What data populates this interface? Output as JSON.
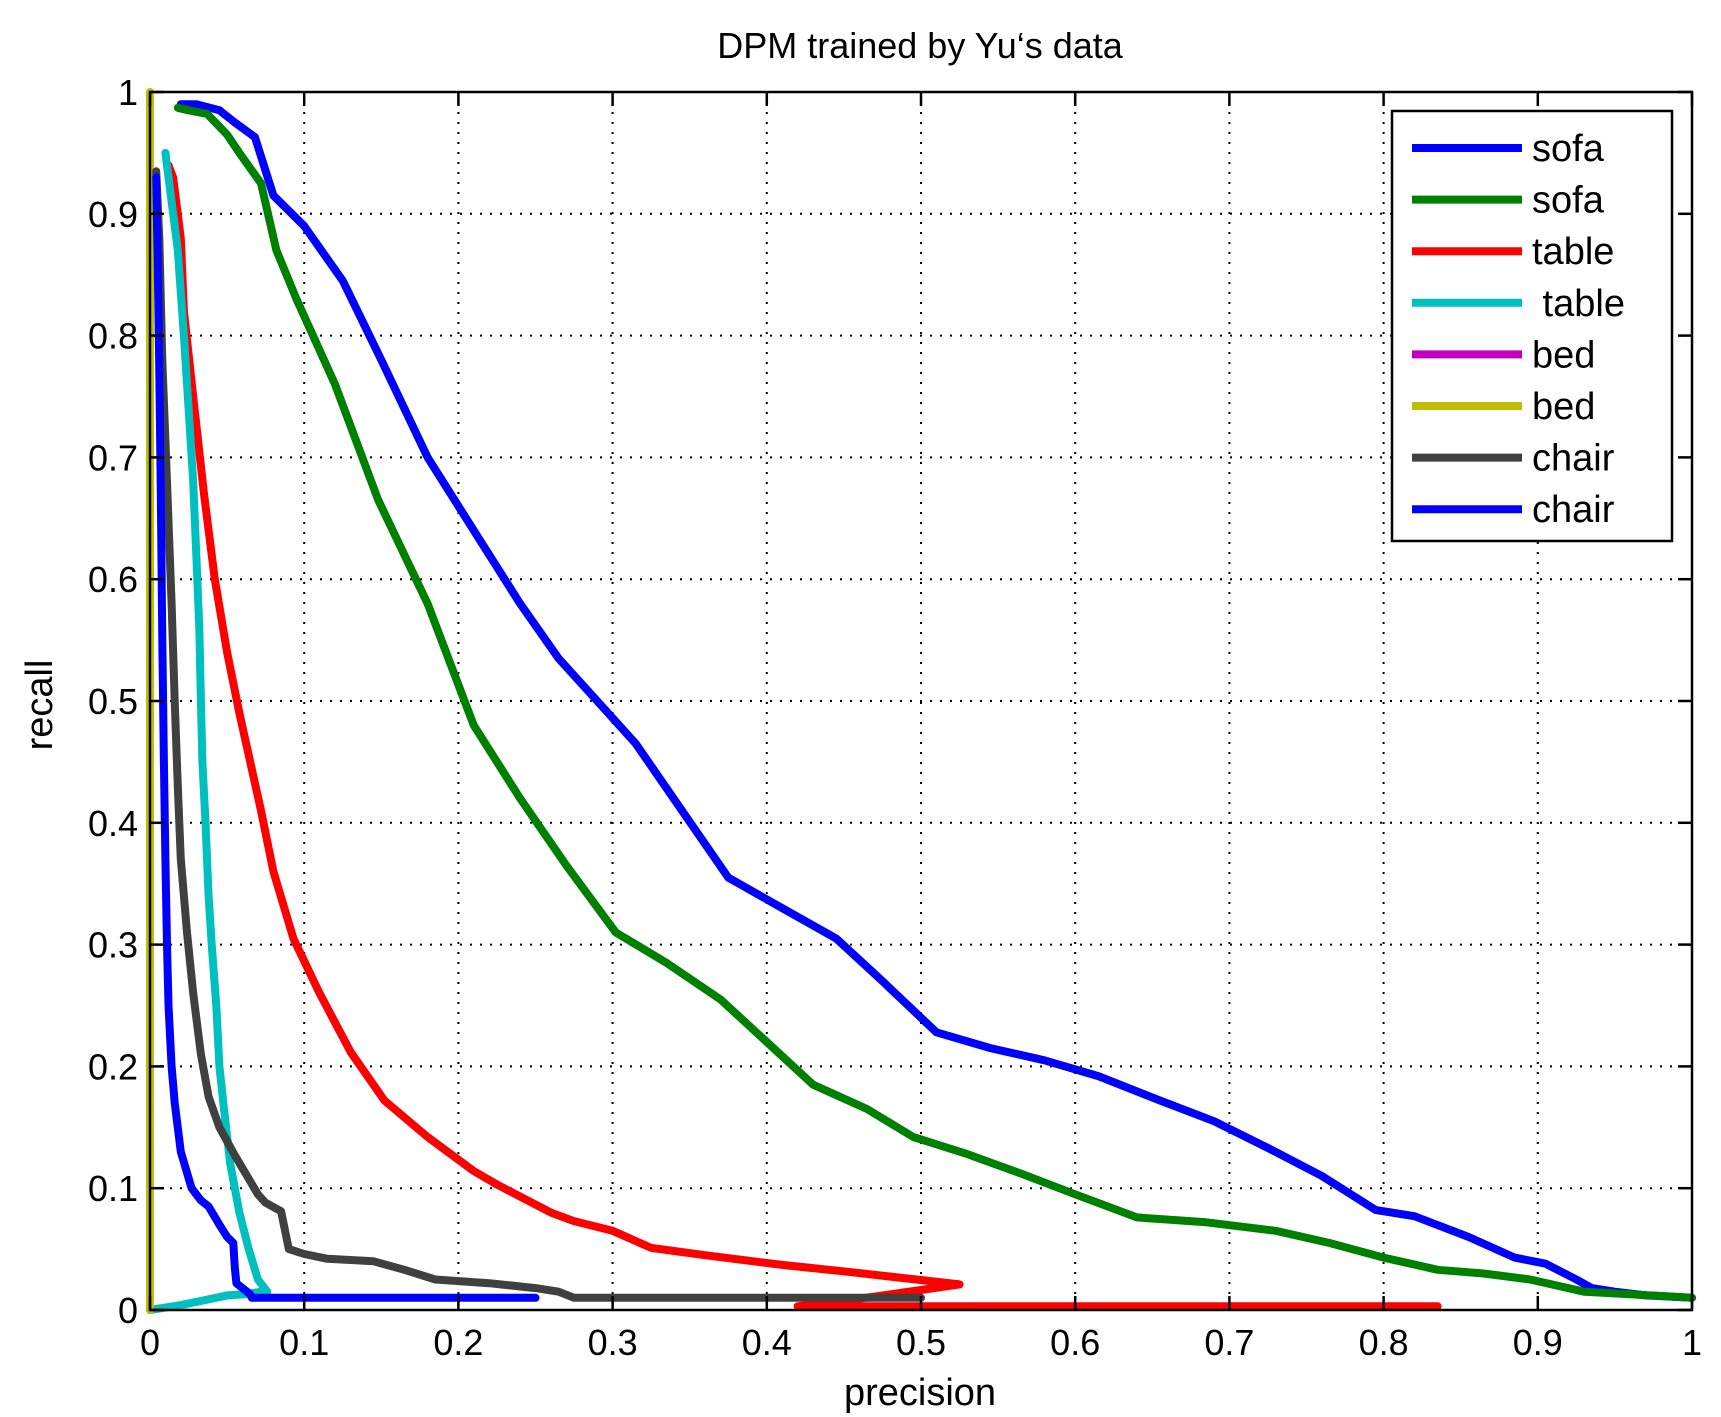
{
  "chart_data": {
    "type": "line",
    "title": "DPM trained by Yu‘s data",
    "xlabel": "precision",
    "ylabel": "recall",
    "xlim": [
      0,
      1
    ],
    "ylim": [
      0,
      1
    ],
    "xticks": [
      0,
      0.1,
      0.2,
      0.3,
      0.4,
      0.5,
      0.6,
      0.7,
      0.8,
      0.9,
      1
    ],
    "xtick_labels": [
      "0",
      "0.1",
      "0.2",
      "0.3",
      "0.4",
      "0.5",
      "0.6",
      "0.7",
      "0.8",
      "0.9",
      "1"
    ],
    "yticks": [
      0,
      0.1,
      0.2,
      0.3,
      0.4,
      0.5,
      0.6,
      0.7,
      0.8,
      0.9,
      1
    ],
    "ytick_labels": [
      "0",
      "0.1",
      "0.2",
      "0.3",
      "0.4",
      "0.5",
      "0.6",
      "0.7",
      "0.8",
      "0.9",
      "1"
    ],
    "grid": true,
    "legend_position": "top-right",
    "series": [
      {
        "name": "sofa",
        "color": "#0000ff",
        "points": [
          [
            0.02,
            0.99
          ],
          [
            0.03,
            0.99
          ],
          [
            0.045,
            0.985
          ],
          [
            0.055,
            0.975
          ],
          [
            0.068,
            0.963
          ],
          [
            0.08,
            0.915
          ],
          [
            0.1,
            0.89
          ],
          [
            0.125,
            0.845
          ],
          [
            0.15,
            0.78
          ],
          [
            0.18,
            0.7
          ],
          [
            0.21,
            0.64
          ],
          [
            0.24,
            0.58
          ],
          [
            0.265,
            0.535
          ],
          [
            0.29,
            0.5
          ],
          [
            0.315,
            0.465
          ],
          [
            0.345,
            0.41
          ],
          [
            0.375,
            0.355
          ],
          [
            0.41,
            0.33
          ],
          [
            0.445,
            0.305
          ],
          [
            0.475,
            0.27
          ],
          [
            0.51,
            0.228
          ],
          [
            0.545,
            0.215
          ],
          [
            0.58,
            0.205
          ],
          [
            0.615,
            0.192
          ],
          [
            0.655,
            0.172
          ],
          [
            0.69,
            0.155
          ],
          [
            0.725,
            0.133
          ],
          [
            0.76,
            0.11
          ],
          [
            0.795,
            0.082
          ],
          [
            0.82,
            0.077
          ],
          [
            0.855,
            0.06
          ],
          [
            0.885,
            0.043
          ],
          [
            0.905,
            0.038
          ],
          [
            0.925,
            0.025
          ],
          [
            0.935,
            0.018
          ],
          [
            0.95,
            0.015
          ],
          [
            0.97,
            0.012
          ],
          [
            1.0,
            0.01
          ]
        ]
      },
      {
        "name": "sofa",
        "color": "#008000",
        "points": [
          [
            0.018,
            0.987
          ],
          [
            0.025,
            0.985
          ],
          [
            0.037,
            0.982
          ],
          [
            0.05,
            0.965
          ],
          [
            0.058,
            0.95
          ],
          [
            0.072,
            0.925
          ],
          [
            0.082,
            0.87
          ],
          [
            0.095,
            0.83
          ],
          [
            0.12,
            0.76
          ],
          [
            0.148,
            0.665
          ],
          [
            0.18,
            0.58
          ],
          [
            0.21,
            0.48
          ],
          [
            0.24,
            0.42
          ],
          [
            0.27,
            0.365
          ],
          [
            0.302,
            0.31
          ],
          [
            0.335,
            0.285
          ],
          [
            0.37,
            0.255
          ],
          [
            0.4,
            0.22
          ],
          [
            0.43,
            0.185
          ],
          [
            0.465,
            0.165
          ],
          [
            0.495,
            0.142
          ],
          [
            0.53,
            0.128
          ],
          [
            0.565,
            0.112
          ],
          [
            0.6,
            0.095
          ],
          [
            0.64,
            0.076
          ],
          [
            0.685,
            0.072
          ],
          [
            0.73,
            0.065
          ],
          [
            0.765,
            0.055
          ],
          [
            0.8,
            0.043
          ],
          [
            0.835,
            0.033
          ],
          [
            0.865,
            0.03
          ],
          [
            0.895,
            0.025
          ],
          [
            0.93,
            0.015
          ],
          [
            0.96,
            0.013
          ],
          [
            1.0,
            0.01
          ]
        ]
      },
      {
        "name": "table",
        "color": "#ff0000",
        "points": [
          [
            0.012,
            0.94
          ],
          [
            0.015,
            0.93
          ],
          [
            0.02,
            0.88
          ],
          [
            0.022,
            0.82
          ],
          [
            0.028,
            0.75
          ],
          [
            0.035,
            0.67
          ],
          [
            0.042,
            0.6
          ],
          [
            0.05,
            0.54
          ],
          [
            0.058,
            0.49
          ],
          [
            0.065,
            0.45
          ],
          [
            0.072,
            0.41
          ],
          [
            0.08,
            0.36
          ],
          [
            0.093,
            0.305
          ],
          [
            0.11,
            0.26
          ],
          [
            0.13,
            0.212
          ],
          [
            0.152,
            0.172
          ],
          [
            0.18,
            0.142
          ],
          [
            0.21,
            0.114
          ],
          [
            0.225,
            0.103
          ],
          [
            0.26,
            0.08
          ],
          [
            0.275,
            0.073
          ],
          [
            0.3,
            0.065
          ],
          [
            0.325,
            0.051
          ],
          [
            0.36,
            0.045
          ],
          [
            0.41,
            0.037
          ],
          [
            0.455,
            0.031
          ],
          [
            0.525,
            0.021
          ],
          [
            0.47,
            0.011
          ],
          [
            0.42,
            0.003
          ],
          [
            0.835,
            0.003
          ]
        ]
      },
      {
        "name": " table",
        "color": "#00bfbf",
        "points": [
          [
            0.01,
            0.95
          ],
          [
            0.012,
            0.93
          ],
          [
            0.018,
            0.87
          ],
          [
            0.022,
            0.8
          ],
          [
            0.025,
            0.74
          ],
          [
            0.028,
            0.68
          ],
          [
            0.03,
            0.62
          ],
          [
            0.032,
            0.56
          ],
          [
            0.033,
            0.5
          ],
          [
            0.034,
            0.45
          ],
          [
            0.036,
            0.4
          ],
          [
            0.038,
            0.34
          ],
          [
            0.04,
            0.3
          ],
          [
            0.043,
            0.25
          ],
          [
            0.045,
            0.2
          ],
          [
            0.048,
            0.165
          ],
          [
            0.052,
            0.12
          ],
          [
            0.058,
            0.08
          ],
          [
            0.064,
            0.05
          ],
          [
            0.07,
            0.025
          ],
          [
            0.076,
            0.015
          ],
          [
            0.072,
            0.015
          ],
          [
            0.062,
            0.013
          ],
          [
            0.05,
            0.012
          ],
          [
            0.035,
            0.008
          ],
          [
            0.02,
            0.004
          ],
          [
            0.0,
            0.0
          ]
        ]
      },
      {
        "name": "bed",
        "color": "#bf00bf",
        "points": [
          [
            0.0,
            0.0
          ],
          [
            0.0,
            0.0
          ]
        ]
      },
      {
        "name": "bed",
        "color": "#bfbf00",
        "points": [
          [
            0.0,
            1.0
          ],
          [
            0.0,
            0.0
          ]
        ]
      },
      {
        "name": "chair",
        "color": "#404040",
        "points": [
          [
            0.004,
            0.935
          ],
          [
            0.006,
            0.88
          ],
          [
            0.008,
            0.78
          ],
          [
            0.011,
            0.68
          ],
          [
            0.014,
            0.58
          ],
          [
            0.016,
            0.5
          ],
          [
            0.018,
            0.43
          ],
          [
            0.02,
            0.37
          ],
          [
            0.024,
            0.31
          ],
          [
            0.028,
            0.26
          ],
          [
            0.033,
            0.21
          ],
          [
            0.038,
            0.175
          ],
          [
            0.045,
            0.15
          ],
          [
            0.055,
            0.127
          ],
          [
            0.063,
            0.11
          ],
          [
            0.07,
            0.095
          ],
          [
            0.075,
            0.088
          ],
          [
            0.085,
            0.081
          ],
          [
            0.09,
            0.05
          ],
          [
            0.1,
            0.046
          ],
          [
            0.115,
            0.042
          ],
          [
            0.145,
            0.04
          ],
          [
            0.165,
            0.033
          ],
          [
            0.185,
            0.025
          ],
          [
            0.22,
            0.022
          ],
          [
            0.25,
            0.018
          ],
          [
            0.265,
            0.015
          ],
          [
            0.275,
            0.01
          ],
          [
            0.35,
            0.01
          ],
          [
            0.45,
            0.01
          ],
          [
            0.5,
            0.01
          ]
        ]
      },
      {
        "name": "chair",
        "color": "#0000ff",
        "points": [
          [
            0.004,
            0.93
          ],
          [
            0.005,
            0.86
          ],
          [
            0.006,
            0.77
          ],
          [
            0.007,
            0.67
          ],
          [
            0.008,
            0.55
          ],
          [
            0.009,
            0.45
          ],
          [
            0.01,
            0.37
          ],
          [
            0.011,
            0.3
          ],
          [
            0.012,
            0.25
          ],
          [
            0.014,
            0.2
          ],
          [
            0.016,
            0.17
          ],
          [
            0.02,
            0.13
          ],
          [
            0.027,
            0.1
          ],
          [
            0.033,
            0.09
          ],
          [
            0.038,
            0.085
          ],
          [
            0.045,
            0.07
          ],
          [
            0.05,
            0.06
          ],
          [
            0.054,
            0.055
          ],
          [
            0.055,
            0.035
          ],
          [
            0.056,
            0.022
          ],
          [
            0.065,
            0.013
          ],
          [
            0.066,
            0.01
          ],
          [
            0.1,
            0.01
          ],
          [
            0.2,
            0.01
          ],
          [
            0.25,
            0.01
          ]
        ]
      }
    ]
  }
}
